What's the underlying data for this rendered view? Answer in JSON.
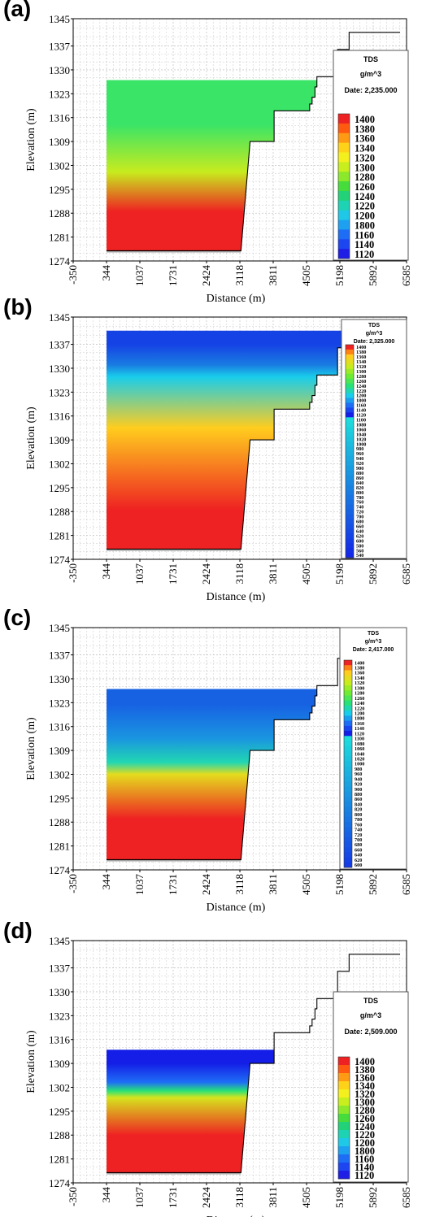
{
  "chart_data": [
    {
      "panel_label": "(a)",
      "type": "heatmap",
      "xlabel": "Distance (m)",
      "ylabel": "Elevation (m)",
      "x_ticks": [
        "-350",
        "344",
        "1037",
        "1731",
        "2424",
        "3118",
        "3811",
        "4505",
        "5198",
        "5892",
        "6585"
      ],
      "y_ticks": [
        "1345",
        "1337",
        "1330",
        "1323",
        "1316",
        "1309",
        "1302",
        "1295",
        "1288",
        "1281",
        "1274"
      ],
      "xlim": [
        -350,
        6585
      ],
      "ylim": [
        1274,
        1345
      ],
      "grid": true,
      "legend_position": "right",
      "legend": {
        "title": "TDS",
        "unit": "g/m^3",
        "date": "Date: 2,235.000",
        "labels": [
          "1400",
          "1380",
          "1360",
          "1340",
          "1320",
          "1300",
          "1280",
          "1260",
          "1240",
          "1220",
          "1200",
          "1800",
          "1160",
          "1140",
          "1120"
        ]
      },
      "water_surface_elevation": 1327,
      "layers": [
        {
          "from_elevation": 1278,
          "to_elevation": 1299,
          "tds": 1400
        },
        {
          "from_elevation": 1299,
          "to_elevation": 1301,
          "tds": 1320
        },
        {
          "from_elevation": 1301,
          "to_elevation": 1327,
          "tds": 1250
        }
      ],
      "bed_profile": {
        "distance": [
          344,
          3140,
          3330,
          3540,
          3540,
          3830,
          3830,
          4570,
          4570,
          4620,
          4620,
          4680,
          4680,
          4720,
          4720,
          5150,
          5150,
          5390,
          5390,
          6450
        ],
        "elevation": [
          1277,
          1277,
          1309,
          1309,
          1309,
          1309,
          1318,
          1318,
          1320,
          1320,
          1322,
          1322,
          1325,
          1325,
          1328,
          1328,
          1336,
          1336,
          1341,
          1341
        ]
      }
    },
    {
      "panel_label": "(b)",
      "type": "heatmap",
      "xlabel": "Distance (m)",
      "ylabel": "Elevation (m)",
      "x_ticks": [
        "-350",
        "344",
        "1037",
        "1731",
        "2424",
        "3118",
        "3811",
        "4505",
        "5198",
        "5892",
        "6585"
      ],
      "y_ticks": [
        "1345",
        "1337",
        "1330",
        "1323",
        "1316",
        "1309",
        "1302",
        "1295",
        "1288",
        "1281",
        "1274"
      ],
      "xlim": [
        -350,
        6585
      ],
      "ylim": [
        1274,
        1345
      ],
      "grid": true,
      "legend_position": "right",
      "legend": {
        "title": "TDS",
        "unit": "g/m^3",
        "date": "Date: 2,325.000",
        "labels": [
          "1400",
          "1380",
          "1360",
          "1340",
          "1320",
          "1300",
          "1280",
          "1260",
          "1240",
          "1220",
          "1200",
          "1800",
          "1160",
          "1140",
          "1120",
          "1100",
          "1080",
          "1060",
          "1040",
          "1020",
          "1000",
          "980",
          "960",
          "940",
          "920",
          "900",
          "880",
          "860",
          "840",
          "820",
          "800",
          "780",
          "760",
          "740",
          "720",
          "700",
          "680",
          "660",
          "640",
          "620",
          "600",
          "580",
          "560",
          "540"
        ]
      },
      "water_surface_elevation": 1341,
      "layers": [
        {
          "from_elevation": 1278,
          "to_elevation": 1299,
          "tds": 1400
        },
        {
          "from_elevation": 1299,
          "to_elevation": 1326,
          "tds": 1360
        },
        {
          "from_elevation": 1326,
          "to_elevation": 1329,
          "tds": 1200
        },
        {
          "from_elevation": 1329,
          "to_elevation": 1333,
          "tds": 800
        },
        {
          "from_elevation": 1333,
          "to_elevation": 1341,
          "tds": 620
        }
      ],
      "bed_profile": {
        "distance": [
          344,
          3140,
          3330,
          3540,
          3540,
          3830,
          3830,
          4570,
          4570,
          4620,
          4620,
          4680,
          4680,
          4720,
          4720,
          5150,
          5150,
          5390,
          5390,
          6450
        ],
        "elevation": [
          1277,
          1277,
          1309,
          1309,
          1309,
          1309,
          1318,
          1318,
          1320,
          1320,
          1322,
          1322,
          1325,
          1325,
          1328,
          1328,
          1336,
          1336,
          1341,
          1341
        ]
      }
    },
    {
      "panel_label": "(c)",
      "type": "heatmap",
      "xlabel": "Distance (m)",
      "ylabel": "Elevation (m)",
      "x_ticks": [
        "-350",
        "344",
        "1037",
        "1731",
        "2424",
        "3118",
        "3811",
        "4505",
        "5198",
        "5892",
        "6585"
      ],
      "y_ticks": [
        "1345",
        "1337",
        "1330",
        "1323",
        "1316",
        "1309",
        "1302",
        "1295",
        "1288",
        "1281",
        "1274"
      ],
      "xlim": [
        -350,
        6585
      ],
      "ylim": [
        1274,
        1345
      ],
      "grid": true,
      "legend_position": "right",
      "legend": {
        "title": "TDS",
        "unit": "g/m^3",
        "date": "Date: 2,417.000",
        "labels": [
          "1400",
          "1380",
          "1360",
          "1340",
          "1320",
          "1300",
          "1280",
          "1260",
          "1240",
          "1220",
          "1200",
          "1800",
          "1160",
          "1140",
          "1120",
          "1100",
          "1080",
          "1060",
          "1040",
          "1020",
          "1000",
          "980",
          "960",
          "940",
          "920",
          "900",
          "880",
          "860",
          "840",
          "820",
          "800",
          "780",
          "760",
          "740",
          "720",
          "700",
          "680",
          "660",
          "640",
          "620",
          "600"
        ]
      },
      "water_surface_elevation": 1327,
      "layers": [
        {
          "from_elevation": 1278,
          "to_elevation": 1300,
          "tds": 1400
        },
        {
          "from_elevation": 1300,
          "to_elevation": 1304,
          "tds": 1340
        },
        {
          "from_elevation": 1304,
          "to_elevation": 1307,
          "tds": 1220
        },
        {
          "from_elevation": 1307,
          "to_elevation": 1318,
          "tds": 880
        },
        {
          "from_elevation": 1318,
          "to_elevation": 1327,
          "tds": 720
        }
      ],
      "bed_profile": {
        "distance": [
          344,
          3140,
          3330,
          3540,
          3540,
          3830,
          3830,
          4570,
          4570,
          4620,
          4620,
          4680,
          4680,
          4720,
          4720,
          5150,
          5150,
          5390,
          5390,
          6450
        ],
        "elevation": [
          1277,
          1277,
          1309,
          1309,
          1309,
          1309,
          1318,
          1318,
          1320,
          1320,
          1322,
          1322,
          1325,
          1325,
          1328,
          1328,
          1336,
          1336,
          1341,
          1341
        ]
      }
    },
    {
      "panel_label": "(d)",
      "type": "heatmap",
      "xlabel": "Distance (m)",
      "ylabel": "Elevation (m)",
      "x_ticks": [
        "-350",
        "344",
        "1037",
        "1731",
        "2424",
        "3118",
        "3811",
        "4505",
        "5198",
        "5892",
        "6585"
      ],
      "y_ticks": [
        "1345",
        "1337",
        "1330",
        "1323",
        "1316",
        "1309",
        "1302",
        "1295",
        "1288",
        "1281",
        "1274"
      ],
      "xlim": [
        -350,
        6585
      ],
      "ylim": [
        1274,
        1345
      ],
      "grid": true,
      "legend_position": "right",
      "legend": {
        "title": "TDS",
        "unit": "g/m^3",
        "date": "Date: 2,509.000",
        "labels": [
          "1400",
          "1380",
          "1360",
          "1340",
          "1320",
          "1300",
          "1280",
          "1260",
          "1240",
          "1220",
          "1200",
          "1800",
          "1160",
          "1140",
          "1120"
        ]
      },
      "water_surface_elevation": 1313,
      "layers": [
        {
          "from_elevation": 1278,
          "to_elevation": 1298,
          "tds": 1400
        },
        {
          "from_elevation": 1298,
          "to_elevation": 1300,
          "tds": 1330
        },
        {
          "from_elevation": 1300,
          "to_elevation": 1302,
          "tds": 1240
        },
        {
          "from_elevation": 1302,
          "to_elevation": 1305,
          "tds": 1160
        },
        {
          "from_elevation": 1305,
          "to_elevation": 1313,
          "tds": 1120
        }
      ],
      "bed_profile": {
        "distance": [
          344,
          3140,
          3330,
          3540,
          3540,
          3830,
          3830,
          4570,
          4570,
          4620,
          4620,
          4680,
          4680,
          4720,
          4720,
          5150,
          5150,
          5390,
          5390,
          6450
        ],
        "elevation": [
          1277,
          1277,
          1309,
          1309,
          1309,
          1309,
          1318,
          1318,
          1320,
          1320,
          1322,
          1322,
          1325,
          1325,
          1328,
          1328,
          1336,
          1336,
          1341,
          1341
        ]
      }
    }
  ]
}
